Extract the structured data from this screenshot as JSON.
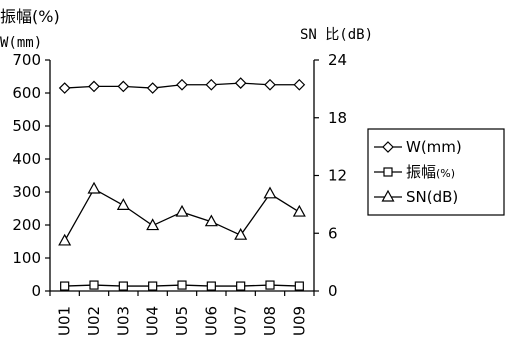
{
  "chart_data": {
    "type": "line",
    "categories": [
      "U01",
      "U02",
      "U03",
      "U04",
      "U05",
      "U06",
      "U07",
      "U08",
      "U09"
    ],
    "left_axis": {
      "label_line1": "振幅(%)",
      "label_line2": "W(mm)",
      "ylim": [
        0,
        700
      ],
      "ticks": [
        "0",
        "100",
        "200",
        "300",
        "400",
        "500",
        "600",
        "700"
      ]
    },
    "right_axis": {
      "label": "SN 比(dB)",
      "ylim": [
        0,
        24
      ],
      "ticks": [
        "0",
        "6",
        "12",
        "18",
        "24"
      ]
    },
    "series": [
      {
        "name": "W(mm)",
        "axis": "left",
        "marker": "diamond",
        "values": [
          615,
          620,
          620,
          615,
          625,
          625,
          630,
          625,
          625
        ]
      },
      {
        "name": "振幅",
        "legend_suffix": "(%)",
        "axis": "left",
        "marker": "square",
        "values": [
          15,
          18,
          15,
          15,
          18,
          15,
          15,
          18,
          15
        ]
      },
      {
        "name": "SN(dB)",
        "axis": "right",
        "marker": "triangle",
        "values": [
          5.2,
          10.6,
          8.9,
          6.8,
          8.2,
          7.2,
          5.8,
          10.1,
          8.2
        ]
      }
    ],
    "grid": false,
    "legend_position": "right"
  }
}
